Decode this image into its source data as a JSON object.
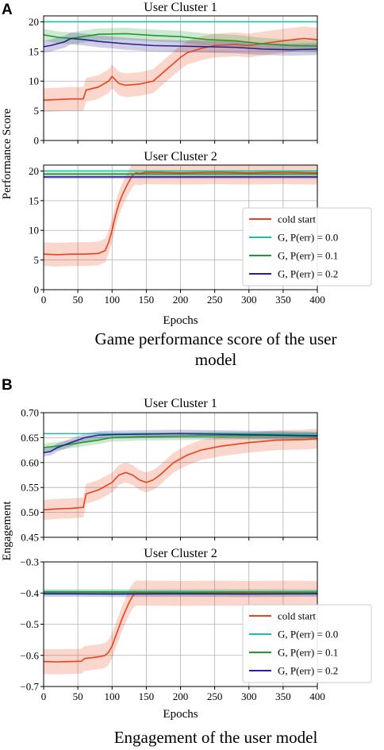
{
  "panels": [
    {
      "letter": "A",
      "caption_lines": [
        "Game performance score of the user",
        "model"
      ],
      "ylabel": "Performance Score"
    },
    {
      "letter": "B",
      "caption_lines": [
        "Engagement of the user model"
      ],
      "ylabel": "Engagement"
    }
  ],
  "legend_entries": [
    {
      "label": "cold start",
      "color": "#e8431a"
    },
    {
      "label": "G, P(err) = 0.0",
      "color": "#1fbfa6"
    },
    {
      "label": "G, P(err) = 0.1",
      "color": "#1f9a2e"
    },
    {
      "label": "G, P(err) = 0.2",
      "color": "#2a1f8c"
    }
  ],
  "chart_data": [
    {
      "type": "line",
      "panel": "A",
      "title": "User Cluster 1",
      "xlabel": "",
      "ylabel": "Performance Score",
      "xlim": [
        0,
        400
      ],
      "ylim": [
        0,
        21
      ],
      "grid": true,
      "xticks": [
        0,
        50,
        100,
        150,
        200,
        250,
        300,
        350,
        400
      ],
      "yticks": [
        0,
        5,
        10,
        15,
        20
      ],
      "series": [
        {
          "name": "cold start",
          "color": "#e8431a",
          "x": [
            0,
            20,
            40,
            58,
            62,
            80,
            95,
            100,
            110,
            120,
            140,
            160,
            170,
            180,
            190,
            200,
            210,
            230,
            250,
            280,
            300,
            330,
            350,
            380,
            400
          ],
          "y": [
            6.8,
            6.9,
            7.0,
            7.0,
            8.5,
            9.0,
            10.0,
            10.8,
            9.6,
            9.3,
            9.5,
            10.0,
            11.0,
            12.0,
            13.0,
            14.0,
            14.8,
            15.5,
            16.0,
            16.2,
            16.0,
            16.5,
            16.8,
            17.2,
            17.0
          ],
          "band": 2.0
        },
        {
          "name": "G, P(err) = 0.0",
          "color": "#1fbfa6",
          "x": [
            0,
            400
          ],
          "y": [
            20.0,
            20.0
          ]
        },
        {
          "name": "G, P(err) = 0.1",
          "color": "#1f9a2e",
          "x": [
            0,
            20,
            40,
            80,
            120,
            160,
            200,
            240,
            280,
            320,
            360,
            400
          ],
          "y": [
            17.8,
            17.4,
            17.2,
            17.9,
            18.0,
            17.7,
            17.5,
            17.0,
            16.8,
            16.3,
            16.0,
            15.9
          ],
          "band": 1.0
        },
        {
          "name": "G, P(err) = 0.2",
          "color": "#2a1f8c",
          "x": [
            0,
            10,
            30,
            40,
            60,
            80,
            120,
            160,
            200,
            240,
            280,
            320,
            360,
            400
          ],
          "y": [
            15.8,
            16.0,
            16.6,
            17.2,
            17.0,
            16.7,
            16.3,
            16.0,
            15.9,
            15.8,
            15.7,
            15.4,
            15.3,
            15.4
          ],
          "band": 1.0
        }
      ]
    },
    {
      "type": "line",
      "panel": "A",
      "title": "User Cluster 2",
      "xlabel": "Epochs",
      "ylabel": "",
      "xlim": [
        0,
        400
      ],
      "ylim": [
        0,
        21
      ],
      "grid": true,
      "xticks": [
        0,
        50,
        100,
        150,
        200,
        250,
        300,
        350,
        400
      ],
      "yticks": [
        0,
        5,
        10,
        15,
        20
      ],
      "series": [
        {
          "name": "cold start",
          "color": "#e8431a",
          "x": [
            0,
            20,
            40,
            60,
            80,
            90,
            95,
            100,
            105,
            110,
            115,
            120,
            125,
            130,
            135,
            140,
            150,
            200,
            250,
            300,
            350,
            400
          ],
          "y": [
            6.0,
            5.9,
            6.0,
            6.0,
            6.1,
            6.6,
            8.0,
            10.0,
            12.5,
            14.5,
            16.0,
            17.2,
            18.3,
            19.3,
            19.7,
            19.6,
            19.8,
            19.7,
            19.8,
            19.7,
            19.8,
            19.7
          ],
          "band": 2.0
        },
        {
          "name": "G, P(err) = 0.0",
          "color": "#1fbfa6",
          "x": [
            0,
            400
          ],
          "y": [
            20.0,
            20.0
          ]
        },
        {
          "name": "G, P(err) = 0.1",
          "color": "#1f9a2e",
          "x": [
            0,
            5,
            100,
            200,
            300,
            400
          ],
          "y": [
            19.5,
            19.5,
            19.5,
            19.5,
            19.5,
            19.5
          ],
          "band": 0.3
        },
        {
          "name": "G, P(err) = 0.2",
          "color": "#2a1f8c",
          "x": [
            0,
            5,
            100,
            200,
            300,
            400
          ],
          "y": [
            19.0,
            19.0,
            19.0,
            19.0,
            19.0,
            19.0
          ],
          "band": 0.3
        }
      ]
    },
    {
      "type": "line",
      "panel": "B",
      "title": "User Cluster 1",
      "xlabel": "",
      "ylabel": "Engagement",
      "xlim": [
        0,
        400
      ],
      "ylim": [
        0.45,
        0.7
      ],
      "grid": true,
      "xticks": [
        0,
        50,
        100,
        150,
        200,
        250,
        300,
        350,
        400
      ],
      "yticks": [
        0.45,
        0.5,
        0.55,
        0.6,
        0.65,
        0.7
      ],
      "series": [
        {
          "name": "cold start",
          "color": "#e8431a",
          "x": [
            0,
            20,
            40,
            58,
            62,
            80,
            100,
            110,
            120,
            130,
            140,
            150,
            160,
            170,
            190,
            210,
            230,
            260,
            300,
            340,
            380,
            400
          ],
          "y": [
            0.505,
            0.507,
            0.508,
            0.51,
            0.537,
            0.545,
            0.56,
            0.575,
            0.58,
            0.575,
            0.565,
            0.56,
            0.565,
            0.575,
            0.6,
            0.615,
            0.625,
            0.633,
            0.64,
            0.645,
            0.646,
            0.648
          ],
          "band": 0.02
        },
        {
          "name": "G, P(err) = 0.0",
          "color": "#1fbfa6",
          "x": [
            0,
            400
          ],
          "y": [
            0.658,
            0.658
          ]
        },
        {
          "name": "G, P(err) = 0.1",
          "color": "#1f9a2e",
          "x": [
            0,
            20,
            40,
            60,
            80,
            100,
            140,
            200,
            260,
            320,
            400
          ],
          "y": [
            0.63,
            0.633,
            0.637,
            0.641,
            0.645,
            0.65,
            0.652,
            0.653,
            0.654,
            0.654,
            0.652
          ],
          "band": 0.008
        },
        {
          "name": "G, P(err) = 0.2",
          "color": "#2a1f8c",
          "x": [
            0,
            10,
            20,
            40,
            60,
            80,
            100,
            150,
            200,
            250,
            300,
            350,
            400
          ],
          "y": [
            0.62,
            0.622,
            0.63,
            0.64,
            0.65,
            0.655,
            0.656,
            0.657,
            0.658,
            0.657,
            0.656,
            0.655,
            0.654
          ],
          "band": 0.008
        }
      ]
    },
    {
      "type": "line",
      "panel": "B",
      "title": "User Cluster 2",
      "xlabel": "Epochs",
      "ylabel": "",
      "xlim": [
        0,
        400
      ],
      "ylim": [
        -0.7,
        -0.3
      ],
      "grid": true,
      "xticks": [
        0,
        50,
        100,
        150,
        200,
        250,
        300,
        350,
        400
      ],
      "yticks": [
        -0.7,
        -0.6,
        -0.5,
        -0.4,
        -0.3
      ],
      "series": [
        {
          "name": "cold start",
          "color": "#e8431a",
          "x": [
            0,
            20,
            40,
            55,
            60,
            80,
            90,
            95,
            100,
            105,
            110,
            115,
            120,
            125,
            130,
            135,
            150,
            200,
            250,
            300,
            350,
            400
          ],
          "y": [
            -0.62,
            -0.621,
            -0.62,
            -0.619,
            -0.61,
            -0.605,
            -0.6,
            -0.59,
            -0.57,
            -0.54,
            -0.51,
            -0.48,
            -0.455,
            -0.43,
            -0.41,
            -0.4,
            -0.4,
            -0.401,
            -0.4,
            -0.401,
            -0.4,
            -0.401
          ],
          "band": 0.04
        },
        {
          "name": "G, P(err) = 0.0",
          "color": "#1fbfa6",
          "x": [
            0,
            400
          ],
          "y": [
            -0.395,
            -0.395
          ]
        },
        {
          "name": "G, P(err) = 0.1",
          "color": "#1f9a2e",
          "x": [
            0,
            5,
            100,
            200,
            300,
            400
          ],
          "y": [
            -0.397,
            -0.397,
            -0.397,
            -0.398,
            -0.397,
            -0.398
          ],
          "band": 0.01
        },
        {
          "name": "G, P(err) = 0.2",
          "color": "#2a1f8c",
          "x": [
            0,
            5,
            100,
            200,
            300,
            400
          ],
          "y": [
            -0.402,
            -0.402,
            -0.403,
            -0.402,
            -0.403,
            -0.402
          ],
          "band": 0.01
        }
      ]
    }
  ]
}
